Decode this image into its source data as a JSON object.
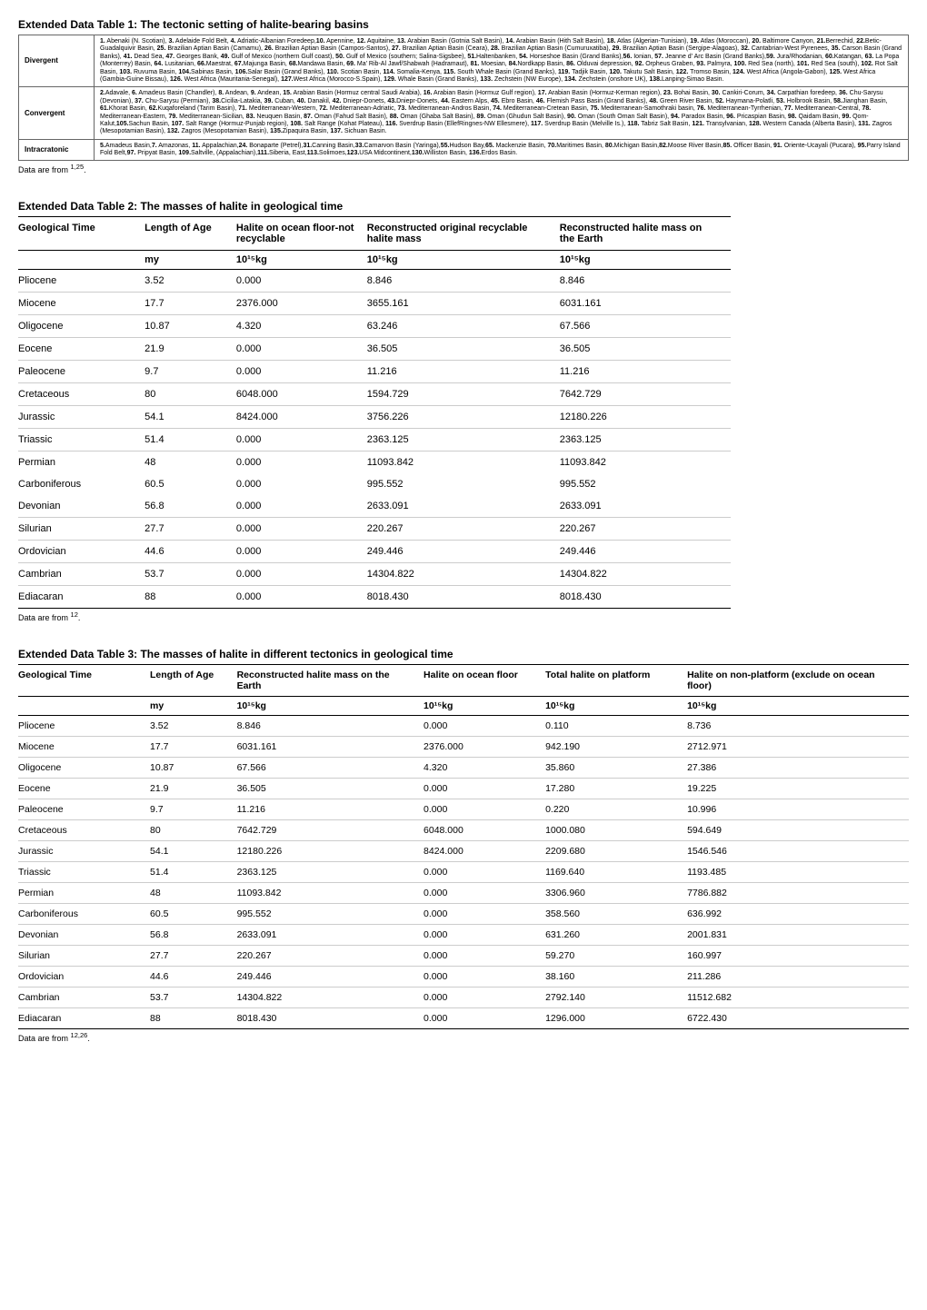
{
  "table1": {
    "title": "Extended Data Table 1: The tectonic setting of halite-bearing basins",
    "rows": [
      {
        "label": "Divergent",
        "text": "1. Abenaki (N. Scotian), 3. Adelaide Fold Belt, 4. Adriatic-Albanian Foredeep,10. Apennine, 12. Aquitaine, 13. Arabian Basin (Gotnia Salt Basin), 14. Arabian Basin (Hith Salt Basin), 18. Atlas (Algerian-Tunisian), 19. Atlas (Moroccan), 20. Baltimore Canyon, 21.Berrechid, 22.Betic-Guadalquivir Basin, 25. Brazilian Aptian Basin (Camamu), 26. Brazilian Aptian Basin (Campos-Santos), 27. Brazilian Aptian Basin (Ceara), 28. Brazilian Aptian Basin (Cumuruxatiba), 29. Brazilian Aptian Basin (Sergipe-Alagoas), 32. Cantabrian-West Pyrenees, 35. Carson Basin (Grand Banks), 41. Dead Sea, 47. Georges Bank, 49. Gulf of Mexico (northern Gulf coast), 50. Gulf of Mexico (southern; Salina-Sigsbee), 51.Haltenbanken, 54. Horseshoe Basin (Grand Banks),56. Ionian, 57. Jeanne d' Arc Basin (Grand Banks),59. Jura/Rhodanian, 60.Katangan, 63. La Popa (Monterrey) Basin, 64. Lusitanian, 66.Maestrat, 67.Majunga Basin, 68.Mandawa Basin, 69. Ma' Rib-Al Jawf/Shabwah (Hadramaut), 81. Moesian, 84.Nordkapp Basin, 86. Olduvai depression, 92. Orpheus Graben, 93. Palmyra, 100. Red Sea (north), 101. Red Sea (south), 102. Rot Salt Basin, 103. Ruvuma Basin, 104.Sabinas Basin, 106.Salar Basin (Grand Banks), 110. Scotian Basin, 114. Somalia-Kenya, 115. South Whale Basin (Grand Banks), 119. Tadjik Basin, 120. Takutu Salt Basin, 122. Tromso Basin, 124. West Africa (Angola-Gabon), 125. West Africa (Gambia-Guine Bissau), 126. West Africa (Mauritania-Senegal), 127.West Africa (Morocco-S.Spain), 129. Whale Basin (Grand Banks), 133. Zechstein (NW Europe), 134. Zechstein (onshore UK), 138.Lanping-Simao Basin."
      },
      {
        "label": "Convergent",
        "text": "2.Adavale, 6. Amadeus Basin (Chandler), 8. Andean, 9. Andean, 15. Arabian Basin (Hormuz central Saudi Arabia), 16. Arabian Basin (Hormuz Gulf region), 17. Arabian Basin (Hormuz-Kerman region), 23. Bohai Basin, 30. Cankiri-Corum, 34. Carpathian foredeep, 36. Chu-Sarysu (Devonian), 37. Chu-Sarysu (Permian), 38.Cicilia-Latakia, 39. Cuban, 40. Danakil, 42. Dniepr-Donets, 43.Dniepr-Donets, 44. Eastern Alps, 45. Ebro Basin, 46. Flemish Pass Basin (Grand Banks), 48. Green River Basin, 52. Haymana-Polatli, 53. Holbrook Basin, 58.Jianghan Basin, 61.Khorat Basin, 62.Kuqaforeland (Tarim Basin), 71. Mediterranean-Western, 72. Mediterranean-Adriatic, 73. Mediterranean-Andros Basin, 74. Mediterranean-Cretean Basin, 75. Mediterranean-Samothraki basin, 76. Mediterranean-Tyrrhenian, 77. Mediterranean-Central, 78. Mediterranean-Eastern, 79. Mediterranean-Sicilian, 83. Neuquen Basin, 87. Oman (Fahud Salt Basin), 88. Oman (Ghaba Salt Basin), 89. Oman (Ghudun Salt Basin), 90. Oman (South Oman Salt Basin), 94. Paradox Basin, 96. Pricaspian Basin, 98. Qaidam Basin, 99. Qom-Kalut,105.Sachun Basin, 107. Salt Range (Hormuz-Punjab region), 108. Salt Range (Kohat Plateau), 116. Sverdrup Basin (EllefRingnes-NW Ellesmere), 117. Sverdrup Basin (Melville Is.), 118. Tabriz Salt Basin, 121. Transylvanian, 128. Western Canada (Alberta Basin), 131. Zagros (Mesopotamian Basin), 132. Zagros (Mesopotamian Basin), 135.Zipaquira Basin, 137. Sichuan Basin."
      },
      {
        "label": "Intracratonic",
        "text": "5.Amadeus Basin,7. Amazonas, 11. Appalachian,24. Bonaparte (Petrel),31.Canning Basin,33.Carnarvon Basin (Yaringa),55.Hudson Bay,65. Mackenzie Basin, 70.Maritimes Basin, 80.Michigan Basin,82.Moose River Basin,85. Officer Basin, 91. Oriente-Ucayali (Pucara), 95.Parry Island Fold Belt,97. Pripyat Basin, 109.Saltville, (Appalachian),111.Siberia, East,113.Solimoes,123.USA Midcontinent,130.Williston Basin, 136.Erdos Basin."
      }
    ],
    "footnote": "Data are from 1,25."
  },
  "table2": {
    "title": "Extended Data Table 2: The masses of halite in geological time",
    "headers": [
      "Geological Time",
      "Length of Age",
      "Halite on ocean floor-not recyclable",
      "Reconstructed original recyclable halite mass",
      "Reconstructed halite mass on the Earth"
    ],
    "unit_row": [
      "",
      "my",
      "10¹⁵kg",
      "10¹⁵kg",
      "10¹⁵kg"
    ],
    "rows": [
      [
        "Pliocene",
        "3.52",
        "0.000",
        "8.846",
        "8.846"
      ],
      [
        "Miocene",
        "17.7",
        "2376.000",
        "3655.161",
        "6031.161"
      ],
      [
        "Oligocene",
        "10.87",
        "4.320",
        "63.246",
        "67.566"
      ],
      [
        "Eocene",
        "21.9",
        "0.000",
        "36.505",
        "36.505"
      ],
      [
        "Paleocene",
        "9.7",
        "0.000",
        "11.216",
        "11.216"
      ],
      [
        "Cretaceous",
        "80",
        "6048.000",
        "1594.729",
        "7642.729"
      ],
      [
        "Jurassic",
        "54.1",
        "8424.000",
        "3756.226",
        "12180.226"
      ],
      [
        "Triassic",
        "51.4",
        "0.000",
        "2363.125",
        "2363.125"
      ],
      [
        "Permian",
        "48",
        "0.000",
        "11093.842",
        "11093.842"
      ],
      [
        "Carboniferous",
        "60.5",
        "0.000",
        "995.552",
        "995.552"
      ],
      [
        "Devonian",
        "56.8",
        "0.000",
        "2633.091",
        "2633.091"
      ],
      [
        "Silurian",
        "27.7",
        "0.000",
        "220.267",
        "220.267"
      ],
      [
        "Ordovician",
        "44.6",
        "0.000",
        "249.446",
        "249.446"
      ],
      [
        "Cambrian",
        "53.7",
        "0.000",
        "14304.822",
        "14304.822"
      ],
      [
        "Ediacaran",
        "88",
        "0.000",
        "8018.430",
        "8018.430"
      ]
    ],
    "grouping": {
      "noborder_rows": [
        8,
        9
      ]
    },
    "footnote": "Data are from 12."
  },
  "table3": {
    "title": "Extended Data Table 3: The masses of halite in different tectonics in geological time",
    "headers": [
      "Geological Time",
      "Length of Age",
      "Reconstructed halite mass on the Earth",
      "Halite on ocean floor",
      "Total halite on platform",
      "Halite on non-platform (exclude on ocean floor)"
    ],
    "unit_row": [
      "",
      "my",
      "10¹⁵kg",
      "10¹⁵kg",
      "10¹⁵kg",
      "10¹⁵kg"
    ],
    "rows": [
      [
        "Pliocene",
        "3.52",
        "8.846",
        "0.000",
        "0.110",
        "8.736"
      ],
      [
        "Miocene",
        "17.7",
        "6031.161",
        "2376.000",
        "942.190",
        "2712.971"
      ],
      [
        "Oligocene",
        "10.87",
        "67.566",
        "4.320",
        "35.860",
        "27.386"
      ],
      [
        "Eocene",
        "21.9",
        "36.505",
        "0.000",
        "17.280",
        "19.225"
      ],
      [
        "Paleocene",
        "9.7",
        "11.216",
        "0.000",
        "0.220",
        "10.996"
      ],
      [
        "Cretaceous",
        "80",
        "7642.729",
        "6048.000",
        "1000.080",
        "594.649"
      ],
      [
        "Jurassic",
        "54.1",
        "12180.226",
        "8424.000",
        "2209.680",
        "1546.546"
      ],
      [
        "Triassic",
        "51.4",
        "2363.125",
        "0.000",
        "1169.640",
        "1193.485"
      ],
      [
        "Permian",
        "48",
        "11093.842",
        "0.000",
        "3306.960",
        "7786.882"
      ],
      [
        "Carboniferous",
        "60.5",
        "995.552",
        "0.000",
        "358.560",
        "636.992"
      ],
      [
        "Devonian",
        "56.8",
        "2633.091",
        "0.000",
        "631.260",
        "2001.831"
      ],
      [
        "Silurian",
        "27.7",
        "220.267",
        "0.000",
        "59.270",
        "160.997"
      ],
      [
        "Ordovician",
        "44.6",
        "249.446",
        "0.000",
        "38.160",
        "211.286"
      ],
      [
        "Cambrian",
        "53.7",
        "14304.822",
        "0.000",
        "2792.140",
        "11512.682"
      ],
      [
        "Ediacaran",
        "88",
        "8018.430",
        "0.000",
        "1296.000",
        "6722.430"
      ]
    ],
    "footnote": "Data are from 12,26."
  },
  "col_widths": {
    "t2": [
      "140px",
      "100px",
      "150px",
      "230px",
      "200px"
    ],
    "t3": [
      "120px",
      "75px",
      "175px",
      "110px",
      "130px",
      "210px"
    ]
  }
}
